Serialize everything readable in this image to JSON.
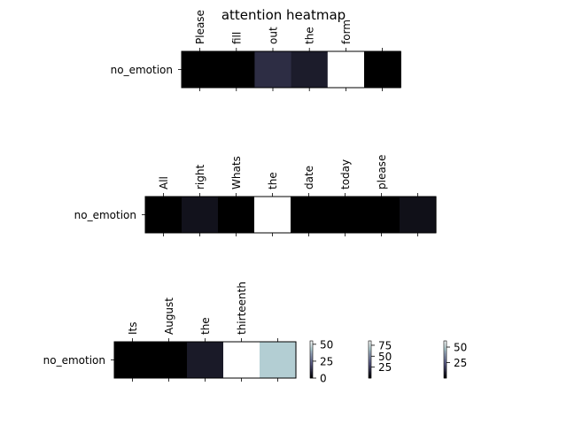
{
  "chart_data": {
    "type": "heatmap",
    "title": "attention heatmap",
    "colormap": "bone",
    "panels": [
      {
        "row_label": "no_emotion",
        "tokens": [
          "Please",
          "fill",
          "out",
          "the",
          "form",
          ""
        ],
        "values": [
          0,
          0,
          11,
          7,
          55,
          0
        ],
        "vmin": 0,
        "vmax": 55
      },
      {
        "row_label": "no_emotion",
        "tokens": [
          "All",
          "right",
          "Whats",
          "the",
          "date",
          "today",
          "please",
          ""
        ],
        "values": [
          0,
          7,
          0,
          85,
          0,
          0,
          0,
          6
        ],
        "vmin": 0,
        "vmax": 85
      },
      {
        "row_label": "no_emotion",
        "tokens": [
          "Its",
          "August",
          "the",
          "thirteenth",
          ""
        ],
        "values": [
          0,
          0,
          7,
          60,
          47
        ],
        "vmin": 0,
        "vmax": 60
      }
    ],
    "colorbars": [
      {
        "ticks": [
          "50",
          "25",
          "0"
        ],
        "tick_values": [
          50,
          25,
          0
        ],
        "vmin": 0,
        "vmax": 55
      },
      {
        "ticks": [
          "75",
          "50",
          "25"
        ],
        "tick_values": [
          75,
          50,
          25
        ],
        "vmin": 0,
        "vmax": 85
      },
      {
        "ticks": [
          "50",
          "25"
        ],
        "tick_values": [
          50,
          25
        ],
        "vmin": 0,
        "vmax": 60
      }
    ]
  }
}
